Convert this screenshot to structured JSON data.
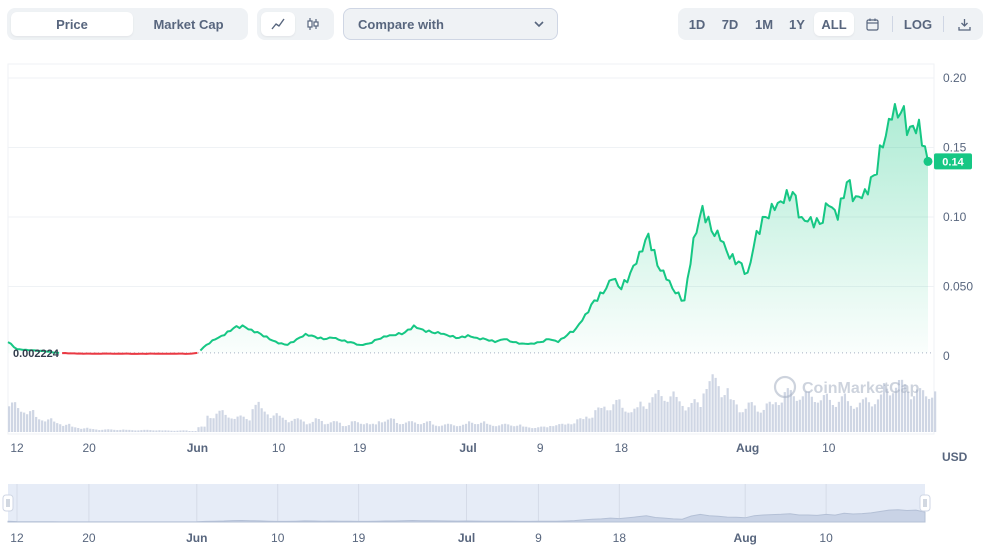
{
  "toolbar": {
    "tabs": [
      {
        "label": "Price",
        "active": true
      },
      {
        "label": "Market Cap",
        "active": false
      }
    ],
    "chart_types": [
      {
        "icon": "line-chart-icon",
        "active": true
      },
      {
        "icon": "candlestick-icon",
        "active": false
      }
    ],
    "compare_label": "Compare with",
    "ranges": [
      {
        "label": "1D",
        "active": false
      },
      {
        "label": "7D",
        "active": false
      },
      {
        "label": "1M",
        "active": false
      },
      {
        "label": "1Y",
        "active": false
      },
      {
        "label": "ALL",
        "active": true
      }
    ],
    "log_label": "LOG",
    "icons": {
      "calendar": "calendar-icon",
      "download": "download-icon",
      "chevron": "chevron-down-icon"
    }
  },
  "watermark": "CoinMarketCap",
  "colors": {
    "up": "#16c784",
    "down": "#ea3943",
    "grid": "#eff2f5",
    "axis_text": "#58667e",
    "volume": "#cfd6e4"
  },
  "chart_data": {
    "type": "line",
    "y_axis": {
      "ticks": [
        "0.20",
        "0.15",
        "0.10",
        "0.050",
        "0"
      ],
      "tick_values": [
        0.2,
        0.15,
        0.1,
        0.05,
        0
      ],
      "ylim": [
        0,
        0.2
      ],
      "position": "right"
    },
    "x_axis": {
      "ticks": [
        "12",
        "20",
        "Jun",
        "10",
        "19",
        "Jul",
        "9",
        "18",
        "Aug",
        "10"
      ],
      "tick_days": [
        12,
        20,
        32,
        41,
        50,
        62,
        70,
        79,
        93,
        102
      ],
      "day_range": [
        11,
        113
      ]
    },
    "currency_label": "USD",
    "baseline_label": "0.002224",
    "baseline_value": 0.002224,
    "current_price_label": "0.14",
    "current_price": 0.14,
    "series": [
      {
        "x": [
          11,
          12,
          13,
          14,
          15,
          16,
          17,
          18,
          19,
          20,
          21,
          22,
          23,
          24,
          25,
          26,
          27,
          28,
          29,
          30,
          31,
          32,
          33,
          34,
          35,
          36,
          37,
          38,
          39,
          40,
          41,
          42,
          43,
          44,
          45,
          46,
          47,
          48,
          49,
          50,
          51,
          52,
          53,
          54,
          55,
          56,
          57,
          58,
          59,
          60,
          61,
          62,
          63,
          64,
          65,
          66,
          67,
          68,
          69,
          70,
          71,
          72,
          73,
          74,
          75,
          76,
          77,
          78,
          79,
          80,
          81,
          82,
          83,
          84,
          85,
          86,
          87,
          88,
          89,
          90,
          91,
          92,
          93,
          94,
          95,
          96,
          97,
          98,
          99,
          100,
          101,
          102,
          103,
          104,
          105,
          106,
          107,
          108,
          109,
          110,
          111,
          112,
          113
        ],
        "values": [
          0.01,
          0.005,
          0.0045,
          0.004,
          0.0035,
          0.0025,
          0.0021,
          0.0019,
          0.0018,
          0.0017,
          0.0016,
          0.0017,
          0.0016,
          0.0017,
          0.0016,
          0.0016,
          0.0017,
          0.0016,
          0.0016,
          0.0017,
          0.0016,
          0.0022,
          0.008,
          0.012,
          0.015,
          0.02,
          0.022,
          0.019,
          0.016,
          0.012,
          0.009,
          0.008,
          0.012,
          0.016,
          0.014,
          0.012,
          0.013,
          0.011,
          0.01,
          0.008,
          0.009,
          0.012,
          0.014,
          0.015,
          0.017,
          0.022,
          0.019,
          0.017,
          0.016,
          0.014,
          0.013,
          0.015,
          0.013,
          0.012,
          0.01,
          0.012,
          0.01,
          0.009,
          0.009,
          0.01,
          0.012,
          0.01,
          0.015,
          0.02,
          0.03,
          0.04,
          0.045,
          0.055,
          0.048,
          0.06,
          0.075,
          0.088,
          0.065,
          0.055,
          0.045,
          0.04,
          0.085,
          0.108,
          0.09,
          0.083,
          0.07,
          0.068,
          0.06,
          0.09,
          0.1,
          0.105,
          0.11,
          0.118,
          0.1,
          0.1,
          0.095,
          0.108,
          0.098,
          0.125,
          0.115,
          0.12,
          0.13,
          0.15,
          0.17,
          0.175,
          0.165,
          0.17,
          0.14
        ],
        "color_below_baseline": "#ea3943",
        "color_above_baseline": "#16c784"
      }
    ],
    "volume": {
      "x_start": 11,
      "values": [
        0.55,
        0.5,
        0.4,
        0.3,
        0.25,
        0.2,
        0.15,
        0.1,
        0.08,
        0.06,
        0.05,
        0.05,
        0.05,
        0.04,
        0.04,
        0.04,
        0.04,
        0.03,
        0.03,
        0.03,
        0.02,
        0.1,
        0.35,
        0.4,
        0.35,
        0.3,
        0.3,
        0.55,
        0.45,
        0.35,
        0.3,
        0.25,
        0.25,
        0.2,
        0.25,
        0.2,
        0.2,
        0.15,
        0.2,
        0.2,
        0.15,
        0.25,
        0.25,
        0.2,
        0.2,
        0.2,
        0.2,
        0.15,
        0.15,
        0.15,
        0.15,
        0.2,
        0.2,
        0.15,
        0.15,
        0.15,
        0.15,
        0.1,
        0.1,
        0.1,
        0.15,
        0.15,
        0.2,
        0.25,
        0.35,
        0.45,
        0.55,
        0.6,
        0.5,
        0.45,
        0.6,
        0.7,
        0.8,
        0.75,
        0.65,
        0.55,
        0.6,
        1.0,
        1.05,
        0.9,
        0.6,
        0.5,
        0.55,
        0.5,
        0.55,
        0.7,
        0.8,
        0.8,
        0.75,
        0.75,
        0.7,
        0.65,
        0.7,
        0.6,
        0.6,
        0.65,
        0.7,
        0.9,
        1.0,
        0.95,
        0.85,
        0.8,
        0.85
      ]
    }
  }
}
